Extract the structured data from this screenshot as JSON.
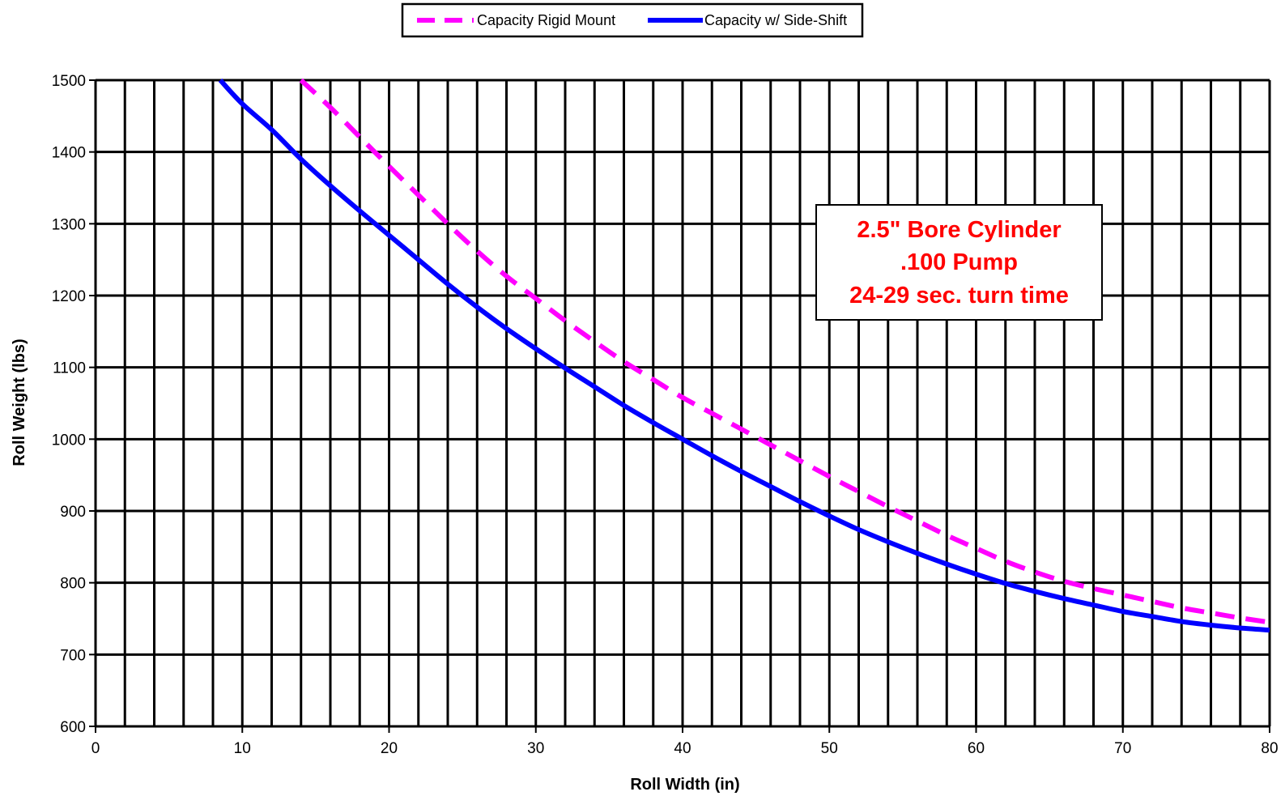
{
  "chart_data": {
    "type": "line",
    "title": "",
    "xlabel": "Roll Width (in)",
    "ylabel": "Roll Weight (lbs)",
    "xlim": [
      0,
      80
    ],
    "ylim": [
      600,
      1500
    ],
    "x_major_ticks": [
      0,
      10,
      20,
      30,
      40,
      50,
      60,
      70,
      80
    ],
    "x_tick_labels": [
      "0",
      "10",
      "20",
      "30",
      "40",
      "50",
      "60",
      "70",
      "80"
    ],
    "x_minor_step": 2,
    "y_ticks": [
      600,
      700,
      800,
      900,
      1000,
      1100,
      1200,
      1300,
      1400,
      1500
    ],
    "y_tick_labels": [
      "600",
      "700",
      "800",
      "900",
      "1000",
      "1100",
      "1200",
      "1300",
      "1400",
      "1500"
    ],
    "grid": true,
    "legend": {
      "placement": "top-center",
      "entries": [
        "Capacity Rigid Mount",
        "Capacity w/ Side-Shift"
      ]
    },
    "series": [
      {
        "name": "Capacity Rigid Mount",
        "color": "#ff00ff",
        "style": "dashed",
        "x": [
          14,
          16,
          18,
          20,
          22,
          24,
          26,
          28,
          30,
          32,
          34,
          36,
          38,
          40,
          42,
          44,
          46,
          48,
          50,
          52,
          54,
          56,
          58,
          60,
          62,
          64,
          66,
          68,
          70,
          72,
          74,
          76,
          78,
          80
        ],
        "y": [
          1500,
          1462,
          1421,
          1380,
          1340,
          1300,
          1262,
          1227,
          1196,
          1165,
          1136,
          1108,
          1083,
          1058,
          1036,
          1014,
          992,
          970,
          948,
          927,
          906,
          886,
          866,
          848,
          830,
          815,
          802,
          792,
          783,
          774,
          765,
          758,
          751,
          745
        ]
      },
      {
        "name": "Capacity w/ Side-Shift",
        "color": "#0000ff",
        "style": "solid",
        "x": [
          8.5,
          10,
          12,
          14,
          16,
          18,
          20,
          22,
          24,
          26,
          28,
          30,
          32,
          34,
          36,
          38,
          40,
          42,
          44,
          46,
          48,
          50,
          52,
          54,
          56,
          58,
          60,
          62,
          64,
          66,
          68,
          70,
          72,
          74,
          76,
          78,
          80
        ],
        "y": [
          1500,
          1467,
          1431,
          1390,
          1353,
          1318,
          1284,
          1250,
          1216,
          1184,
          1154,
          1126,
          1099,
          1073,
          1047,
          1023,
          1000,
          977,
          955,
          934,
          913,
          893,
          874,
          857,
          841,
          826,
          812,
          799,
          788,
          778,
          769,
          760,
          753,
          746,
          741,
          737,
          734
        ]
      }
    ],
    "annotation": {
      "lines": [
        "2.5\" Bore Cylinder",
        ".100 Pump",
        "24-29 sec. turn time"
      ],
      "color": "#ff0000"
    }
  }
}
